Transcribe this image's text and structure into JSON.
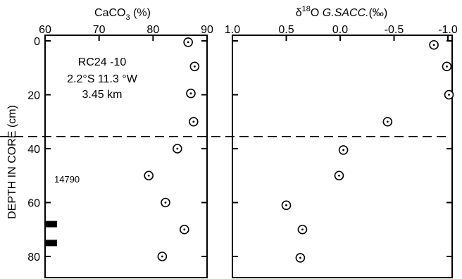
{
  "chart_data": [
    {
      "type": "scatter",
      "title_parts": {
        "main": "CaCO",
        "sub": "3",
        "unit": " (%)"
      },
      "xlim": [
        60,
        90
      ],
      "ylim": [
        0,
        90
      ],
      "xticks": [
        "60",
        "70",
        "80",
        "90"
      ],
      "yticks": [
        "0",
        "20",
        "40",
        "60",
        "80"
      ],
      "ylabel": "DEPTH IN CORE (cm)",
      "annotations": [
        "RC24 -10",
        "2.2°S  11.3 °W",
        "3.45 km",
        "14790"
      ],
      "series": [
        {
          "points": [
            {
              "x": 86.5,
              "y": 0.5
            },
            {
              "x": 87.7,
              "y": 9.5
            },
            {
              "x": 87.0,
              "y": 19.5
            },
            {
              "x": 87.5,
              "y": 30
            },
            {
              "x": 84.5,
              "y": 40
            },
            {
              "x": 79.2,
              "y": 50
            },
            {
              "x": 82.3,
              "y": 60
            },
            {
              "x": 85.8,
              "y": 70
            },
            {
              "x": 81.7,
              "y": 80
            }
          ]
        }
      ],
      "bars_at_depth": [
        68,
        75
      ],
      "dashed_line_depth": 35.5
    },
    {
      "type": "scatter",
      "title_parts": {
        "delta": "δ",
        "sup": "18",
        "main": "O ",
        "italic": "G.SACC.",
        "unit": "(‰)"
      },
      "xlim": [
        1.0,
        -1.0
      ],
      "ylim": [
        0,
        90
      ],
      "xticks": [
        "1.0",
        "0.5",
        "0.0",
        "-0.5",
        "-1.0"
      ],
      "series": [
        {
          "points": [
            {
              "x": -0.87,
              "y": 1.5
            },
            {
              "x": -0.99,
              "y": 9.5
            },
            {
              "x": -1.01,
              "y": 20
            },
            {
              "x": -0.44,
              "y": 30
            },
            {
              "x": -0.03,
              "y": 40.5
            },
            {
              "x": 0.01,
              "y": 50
            },
            {
              "x": 0.5,
              "y": 61
            },
            {
              "x": 0.35,
              "y": 70
            },
            {
              "x": 0.37,
              "y": 80.5
            }
          ]
        }
      ],
      "dashed_line_depth": 35.5
    }
  ]
}
